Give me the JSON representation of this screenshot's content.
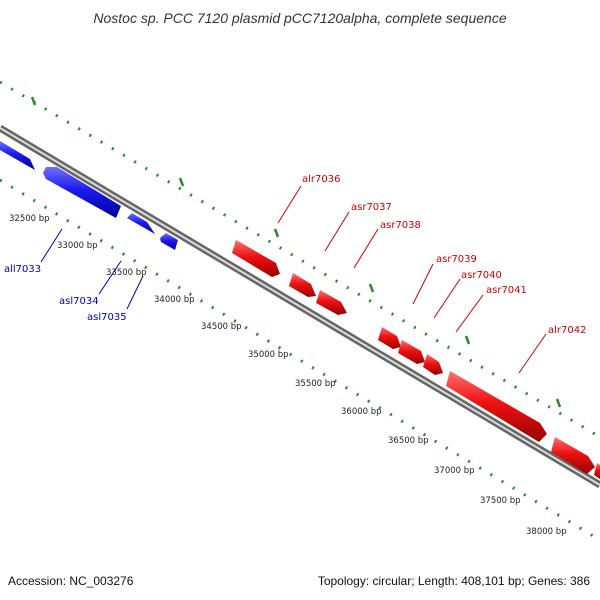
{
  "title": "Nostoc sp. PCC 7120 plasmid pCC7120alpha, complete sequence",
  "footer": {
    "accession": "Accession: NC_003276",
    "summary": "Topology: circular; Length: 408,101 bp; Genes: 386"
  },
  "colors": {
    "reverse_strand": "#1a1aee",
    "forward_strand": "#ee1111",
    "tick_marks": "#2a8a2a",
    "backbone": "#888888",
    "title": "#333333"
  },
  "ticks": [
    "32500 bp",
    "33000 bp",
    "33500 bp",
    "34000 bp",
    "34500 bp",
    "35000 bp",
    "35500 bp",
    "36000 bp",
    "36500 bp",
    "37000 bp",
    "37500 bp",
    "38000 bp"
  ],
  "genes_reverse": [
    "all7033",
    "asl7034",
    "asl7035"
  ],
  "genes_forward": [
    "alr7036",
    "asr7037",
    "asr7038",
    "asr7039",
    "asr7040",
    "asr7041",
    "alr7042"
  ]
}
